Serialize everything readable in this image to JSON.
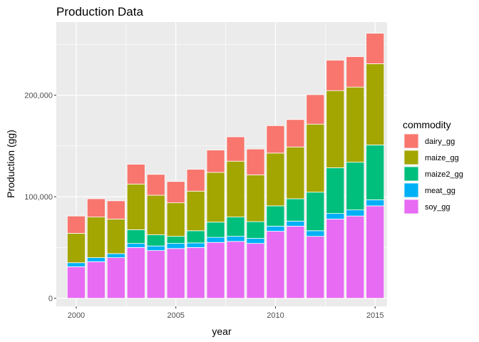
{
  "chart_data": {
    "type": "bar",
    "stacked": true,
    "title": "Production Data",
    "xlabel": "year",
    "ylabel": "Production (gg)",
    "x": [
      2000,
      2001,
      2002,
      2003,
      2004,
      2005,
      2006,
      2007,
      2008,
      2009,
      2010,
      2011,
      2012,
      2013,
      2014,
      2015
    ],
    "xticks": [
      2000,
      2005,
      2010,
      2015
    ],
    "xlim": [
      1999.0,
      2015.6
    ],
    "yticks": [
      0,
      100000,
      200000
    ],
    "ytick_labels": [
      "0",
      "100,000",
      "200,000"
    ],
    "ylim": [
      -8000,
      272000
    ],
    "grid": true,
    "legend": {
      "title": "commodity",
      "position": "right"
    },
    "series": [
      {
        "name": "soy_gg",
        "color": "#E76BF3",
        "values": [
          31000,
          36000,
          40000,
          50000,
          47000,
          49000,
          50000,
          55000,
          56000,
          54000,
          66000,
          71000,
          61000,
          78000,
          81000,
          91000
        ]
      },
      {
        "name": "meat_gg",
        "color": "#00B0F6",
        "values": [
          4000,
          4000,
          4000,
          4000,
          4500,
          5000,
          4500,
          5000,
          5000,
          5000,
          5000,
          5000,
          5500,
          5500,
          6000,
          6000
        ]
      },
      {
        "name": "maize2_gg",
        "color": "#00BF7D",
        "values": [
          0,
          0,
          0,
          13500,
          11000,
          7000,
          12000,
          15000,
          19000,
          16500,
          20000,
          22000,
          38000,
          45000,
          47000,
          54000
        ]
      },
      {
        "name": "maize_gg",
        "color": "#A3A500",
        "values": [
          29000,
          40000,
          34000,
          45000,
          39000,
          33000,
          39000,
          49000,
          55000,
          46000,
          52000,
          51000,
          67000,
          76000,
          74000,
          80000
        ]
      },
      {
        "name": "dairy_gg",
        "color": "#F8766D",
        "values": [
          17000,
          18000,
          18000,
          19500,
          20500,
          21000,
          21500,
          22000,
          24000,
          25500,
          27000,
          27000,
          29000,
          30000,
          30000,
          30000
        ]
      }
    ],
    "legend_order": [
      "dairy_gg",
      "maize_gg",
      "maize2_gg",
      "meat_gg",
      "soy_gg"
    ]
  }
}
